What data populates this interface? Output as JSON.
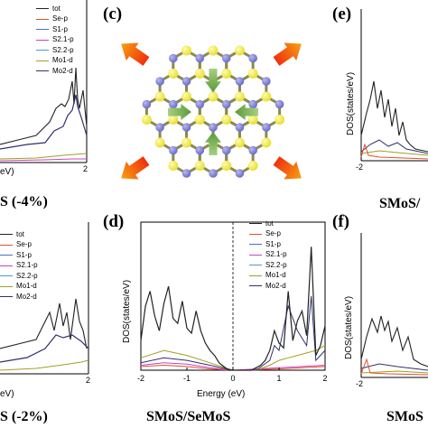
{
  "panels": {
    "c": "(c)",
    "d": "(d)",
    "e": "(e)",
    "f": "(f)"
  },
  "captions": {
    "top_left": "S (-4%)",
    "bottom_left": "S (-2%)",
    "bottom_mid": "SMoS/SeMoS",
    "top_right": "SMoS/",
    "bottom_right": "SMoS"
  },
  "axes": {
    "dos_label": "DOS(states/eV)",
    "dos_label_partial": "eV)",
    "energy_label": "Energy (eV)",
    "energy_label_partial": "eV)"
  },
  "legend": [
    "tot",
    "Se-p",
    "S1-p",
    "S2.1-p",
    "S2.2-p",
    "Mo1-d",
    "Mo2-d"
  ],
  "series_colors": {
    "tot": "#222222",
    "Se-p": "#e05030",
    "S1-p": "#4a70c0",
    "S2.1-p": "#d040c0",
    "S2.2-p": "#40a0d0",
    "Mo1-d": "#a0a020",
    "Mo2-d": "#303070"
  },
  "atom_colors": {
    "S": "#e8e030",
    "Mo": "#6c6cc8"
  },
  "arrow_colors": {
    "strain_out": "#f05010",
    "strain_in": "#5a9a3a"
  },
  "chart_data": [
    {
      "panel": "d",
      "type": "line",
      "xlabel": "Energy (eV)",
      "ylabel": "DOS(states/eV)",
      "xlim": [
        -2,
        2
      ],
      "x_ticks": [
        "-2",
        "-1",
        "0",
        "1",
        "2"
      ],
      "series": [
        {
          "name": "tot",
          "x": [
            -2.0,
            -1.9,
            -1.8,
            -1.7,
            -1.6,
            -1.5,
            -1.4,
            -1.3,
            -1.2,
            -1.1,
            -1.0,
            -0.9,
            -0.8,
            -0.7,
            -0.6,
            -0.5,
            -0.4,
            -0.3,
            -0.2,
            -0.1,
            0.0,
            0.1,
            0.2,
            0.3,
            0.4,
            0.5,
            0.6,
            0.7,
            0.8,
            0.9,
            1.0,
            1.1,
            1.2,
            1.3,
            1.4,
            1.5,
            1.6,
            1.7,
            1.8,
            1.9,
            2.0
          ],
          "y": [
            1.2,
            2.6,
            3.2,
            2.2,
            1.6,
            2.7,
            3.4,
            2.1,
            1.9,
            2.8,
            1.7,
            1.5,
            2.4,
            1.6,
            1.1,
            0.8,
            0.6,
            0.3,
            0.15,
            0,
            0,
            0,
            0,
            0,
            0,
            0.1,
            0.2,
            0.4,
            0.8,
            1.6,
            1.1,
            0.9,
            3.2,
            1.2,
            2.0,
            2.4,
            1.4,
            5.0,
            0.6,
            1.0,
            1.8
          ]
        },
        {
          "name": "Mo2-d",
          "x": [
            -2.0,
            -1.5,
            -1.0,
            -0.5,
            0.0,
            0.5,
            0.8,
            0.9,
            1.0,
            1.2,
            1.4,
            1.6,
            1.7,
            1.8,
            2.0
          ],
          "y": [
            0.3,
            0.5,
            0.4,
            0.2,
            0,
            0,
            0.4,
            1.0,
            0.8,
            2.6,
            1.6,
            1.0,
            3.0,
            0.4,
            0.8
          ]
        },
        {
          "name": "Mo1-d",
          "x": [
            -2.0,
            -1.5,
            -1.0,
            -0.5,
            0.0,
            0.5,
            0.8,
            1.0,
            1.2,
            1.4,
            1.6,
            1.8,
            2.0
          ],
          "y": [
            0.5,
            0.8,
            0.6,
            0.3,
            0,
            0,
            0.2,
            0.4,
            0.5,
            0.6,
            0.7,
            0.8,
            1.0
          ]
        },
        {
          "name": "S2.1-p",
          "x": [
            -2.0,
            -1.5,
            -1.0,
            -0.5,
            0.0,
            1.0,
            1.5,
            2.0
          ],
          "y": [
            0.2,
            0.3,
            0.25,
            0.1,
            0,
            0.1,
            0.15,
            0.2
          ]
        },
        {
          "name": "Se-p",
          "x": [
            -2.0,
            -1.5,
            -1.0,
            -0.5,
            0.0,
            1.0,
            1.5,
            2.0
          ],
          "y": [
            0.15,
            0.2,
            0.15,
            0.05,
            0,
            0.05,
            0.1,
            0.15
          ]
        }
      ]
    }
  ]
}
